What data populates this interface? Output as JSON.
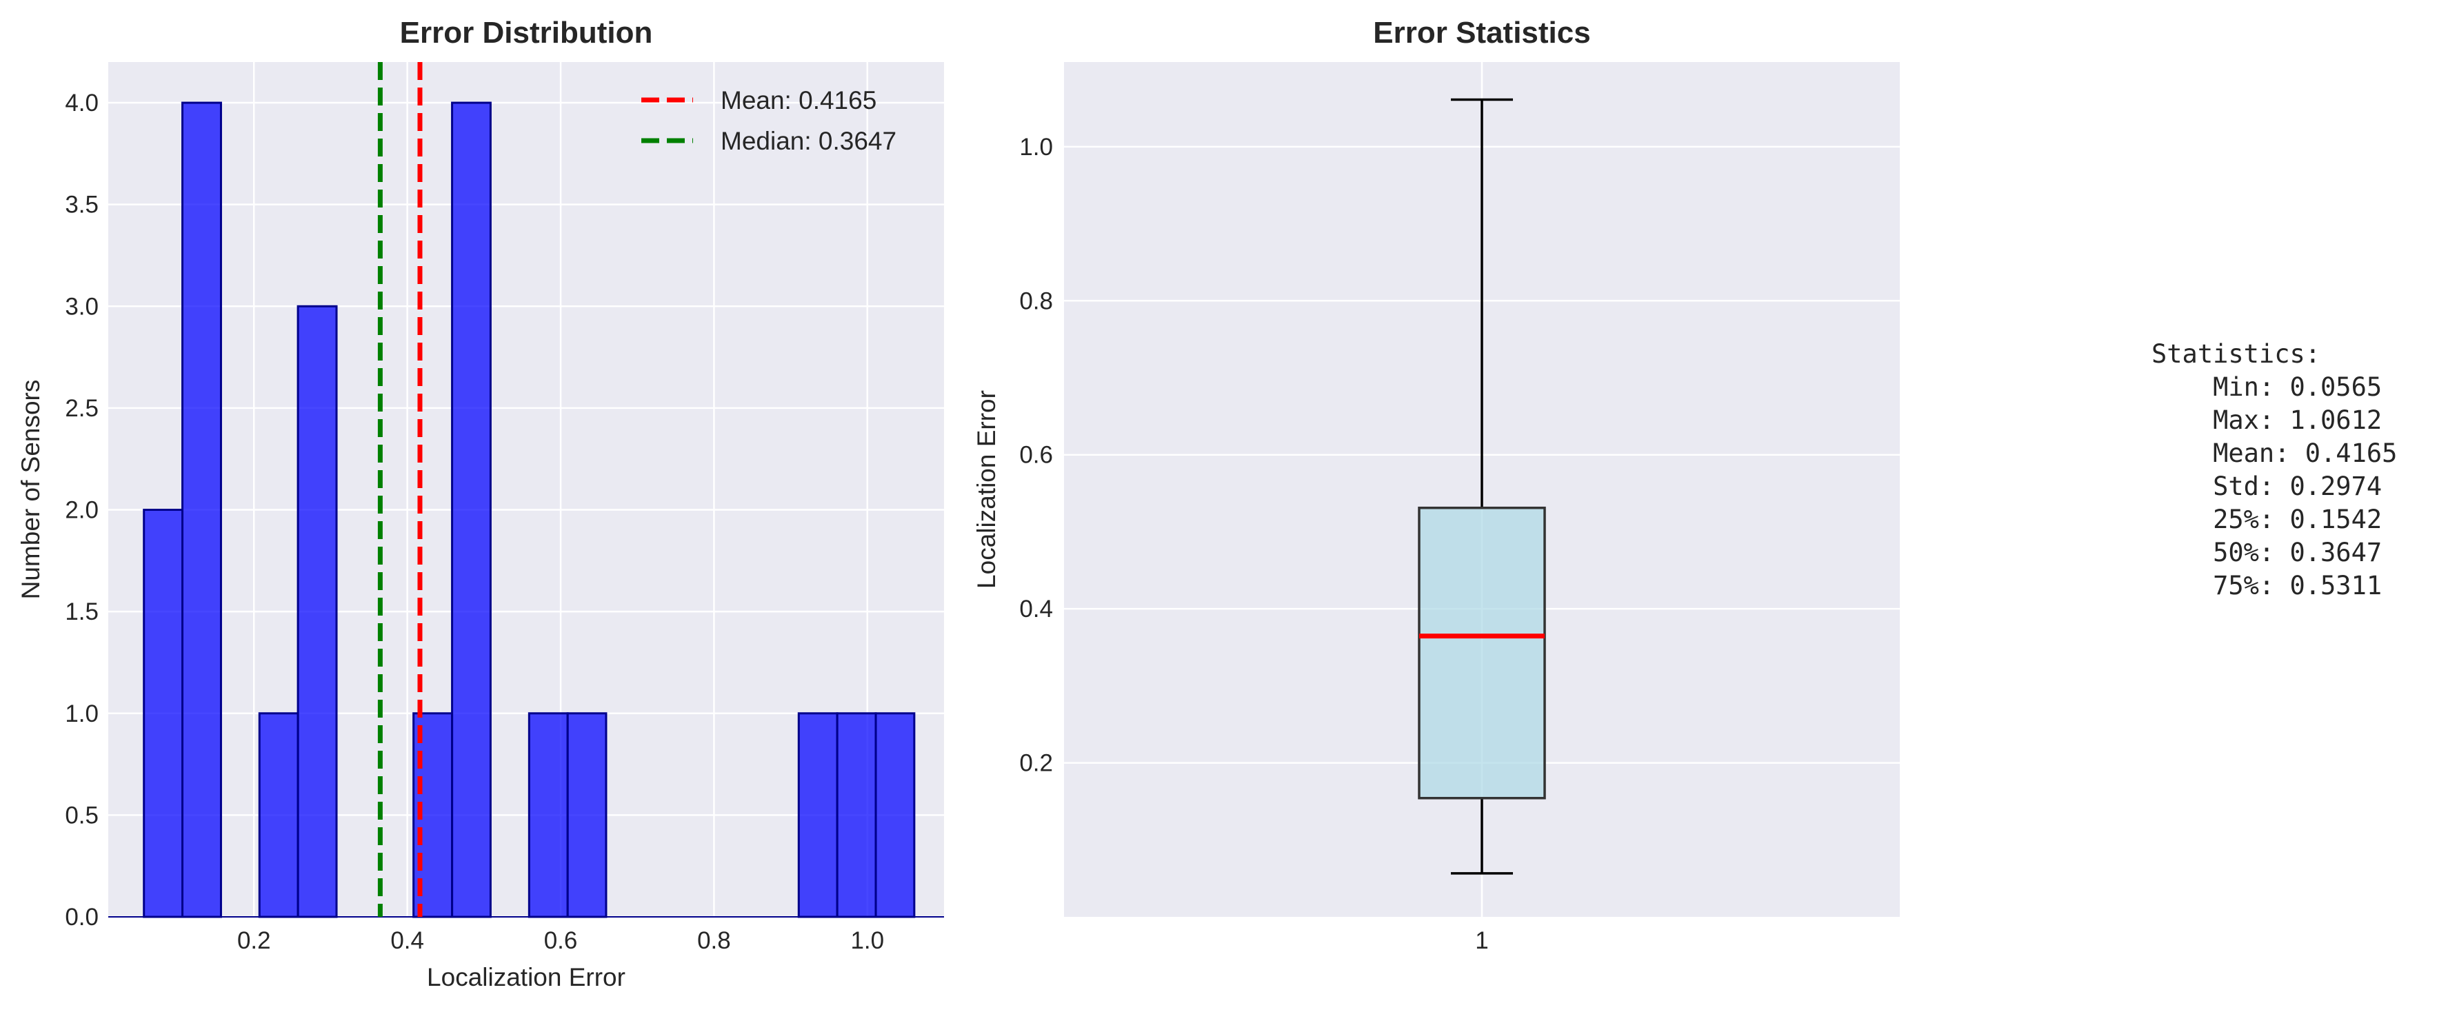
{
  "colors": {
    "panel_bg": "#EAEAF2",
    "grid": "#FFFFFF",
    "hist_fill": "#0000FF",
    "hist_edge": "#00008B",
    "mean_line": "#FF0000",
    "median_line": "#008000",
    "box_fill": "#ADD8E6",
    "box_edge": "#333333",
    "box_median": "#FF0000",
    "whisker": "#000000"
  },
  "chart_data": [
    {
      "type": "bar",
      "subtype": "histogram",
      "title": "Error Distribution",
      "xlabel": "Localization Error",
      "ylabel": "Number of Sensors",
      "xlim": [
        0.01,
        1.1
      ],
      "ylim": [
        0,
        4.2
      ],
      "xticks": [
        0.2,
        0.4,
        0.6,
        0.8,
        1.0
      ],
      "xtick_labels": [
        "0.2",
        "0.4",
        "0.6",
        "0.8",
        "1.0"
      ],
      "yticks": [
        0.0,
        0.5,
        1.0,
        1.5,
        2.0,
        2.5,
        3.0,
        3.5,
        4.0
      ],
      "ytick_labels": [
        "0.0",
        "0.5",
        "1.0",
        "1.5",
        "2.0",
        "2.5",
        "3.0",
        "3.5",
        "4.0"
      ],
      "bin_edges": [
        0.0565,
        0.1067,
        0.157,
        0.2072,
        0.2574,
        0.3077,
        0.3579,
        0.4081,
        0.4584,
        0.5086,
        0.5589,
        0.6091,
        0.6593,
        0.7096,
        0.7598,
        0.81,
        0.8603,
        0.9105,
        0.9607,
        1.011,
        1.0612
      ],
      "counts": [
        2,
        4,
        0,
        1,
        3,
        0,
        0,
        1,
        4,
        0,
        1,
        1,
        0,
        0,
        0,
        0,
        0,
        1,
        1,
        1
      ],
      "lines": [
        {
          "name": "Mean: 0.4165",
          "x": 0.4165
        },
        {
          "name": "Median: 0.3647",
          "x": 0.3647
        }
      ],
      "legend": "top-right",
      "grid": true
    },
    {
      "type": "box",
      "title": "Error Statistics",
      "xlabel": "",
      "ylabel": "Localization Error",
      "categories": [
        "1"
      ],
      "ylim": [
        0.0,
        1.11
      ],
      "yticks": [
        0.2,
        0.4,
        0.6,
        0.8,
        1.0
      ],
      "ytick_labels": [
        "0.2",
        "0.4",
        "0.6",
        "0.8",
        "1.0"
      ],
      "min": 0.0565,
      "q1": 0.1542,
      "median": 0.3647,
      "q3": 0.5311,
      "max": 1.0612,
      "grid": true
    }
  ],
  "stats_text": "Statistics:\n    Min: 0.0565\n    Max: 1.0612\n    Mean: 0.4165\n    Std: 0.2974\n    25%: 0.1542\n    50%: 0.3647\n    75%: 0.5311"
}
